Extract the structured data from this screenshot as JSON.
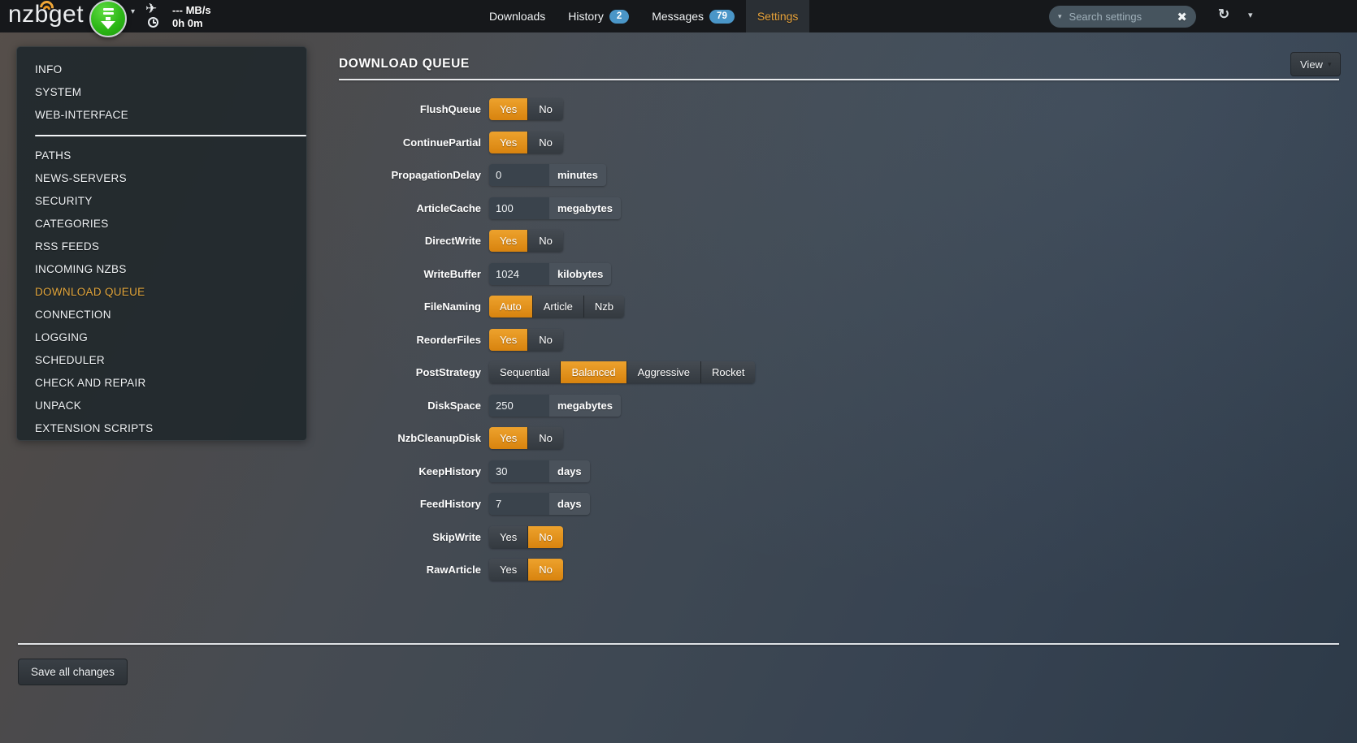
{
  "topbar": {
    "logo": "nzbget",
    "status": {
      "speed": "--- MB/s",
      "time": "0h 0m"
    },
    "nav": [
      {
        "label": "Downloads"
      },
      {
        "label": "History",
        "badge": "2"
      },
      {
        "label": "Messages",
        "badge": "79"
      },
      {
        "label": "Settings",
        "active": true
      }
    ],
    "search": {
      "placeholder": "Search settings"
    },
    "icons": {
      "plane": "✈",
      "caret": "▾",
      "clear": "✖",
      "refresh": "↻"
    }
  },
  "sidebar": {
    "items_top": [
      {
        "label": "INFO"
      },
      {
        "label": "SYSTEM"
      },
      {
        "label": "WEB-INTERFACE"
      }
    ],
    "items_main": [
      {
        "label": "PATHS"
      },
      {
        "label": "NEWS-SERVERS"
      },
      {
        "label": "SECURITY"
      },
      {
        "label": "CATEGORIES"
      },
      {
        "label": "RSS FEEDS"
      },
      {
        "label": "INCOMING NZBS"
      },
      {
        "label": "DOWNLOAD QUEUE",
        "active": true
      },
      {
        "label": "CONNECTION"
      },
      {
        "label": "LOGGING"
      },
      {
        "label": "SCHEDULER"
      },
      {
        "label": "CHECK AND REPAIR"
      },
      {
        "label": "UNPACK"
      },
      {
        "label": "EXTENSION SCRIPTS"
      }
    ]
  },
  "page": {
    "title": "DOWNLOAD QUEUE",
    "view_button": {
      "label": "View",
      "caret": "▾"
    }
  },
  "form": {
    "rows": [
      {
        "label": "FlushQueue",
        "type": "toggle",
        "options": [
          {
            "label": "Yes",
            "selected": true
          },
          {
            "label": "No",
            "selected": false
          }
        ]
      },
      {
        "label": "ContinuePartial",
        "type": "toggle",
        "options": [
          {
            "label": "Yes",
            "selected": true
          },
          {
            "label": "No",
            "selected": false
          }
        ]
      },
      {
        "label": "PropagationDelay",
        "type": "input",
        "value": "0",
        "unit": "minutes"
      },
      {
        "label": "ArticleCache",
        "type": "input",
        "value": "100",
        "unit": "megabytes"
      },
      {
        "label": "DirectWrite",
        "type": "toggle",
        "options": [
          {
            "label": "Yes",
            "selected": true
          },
          {
            "label": "No",
            "selected": false
          }
        ]
      },
      {
        "label": "WriteBuffer",
        "type": "input",
        "value": "1024",
        "unit": "kilobytes"
      },
      {
        "label": "FileNaming",
        "type": "toggle",
        "options": [
          {
            "label": "Auto",
            "selected": true
          },
          {
            "label": "Article",
            "selected": false
          },
          {
            "label": "Nzb",
            "selected": false
          }
        ]
      },
      {
        "label": "ReorderFiles",
        "type": "toggle",
        "options": [
          {
            "label": "Yes",
            "selected": true
          },
          {
            "label": "No",
            "selected": false
          }
        ]
      },
      {
        "label": "PostStrategy",
        "type": "toggle",
        "options": [
          {
            "label": "Sequential",
            "selected": false
          },
          {
            "label": "Balanced",
            "selected": true
          },
          {
            "label": "Aggressive",
            "selected": false
          },
          {
            "label": "Rocket",
            "selected": false
          }
        ]
      },
      {
        "label": "DiskSpace",
        "type": "input",
        "value": "250",
        "unit": "megabytes"
      },
      {
        "label": "NzbCleanupDisk",
        "type": "toggle",
        "options": [
          {
            "label": "Yes",
            "selected": true
          },
          {
            "label": "No",
            "selected": false
          }
        ]
      },
      {
        "label": "KeepHistory",
        "type": "input",
        "value": "30",
        "unit": "days"
      },
      {
        "label": "FeedHistory",
        "type": "input",
        "value": "7",
        "unit": "days"
      },
      {
        "label": "SkipWrite",
        "type": "toggle",
        "options": [
          {
            "label": "Yes",
            "selected": false
          },
          {
            "label": "No",
            "selected": true
          }
        ]
      },
      {
        "label": "RawArticle",
        "type": "toggle",
        "options": [
          {
            "label": "Yes",
            "selected": false
          },
          {
            "label": "No",
            "selected": true
          }
        ]
      }
    ]
  },
  "footer": {
    "save_button": "Save all changes"
  },
  "colors": {
    "accent_orange": "#e0921e",
    "active_link": "#e8a43c",
    "badge_blue": "#4a96c8"
  }
}
